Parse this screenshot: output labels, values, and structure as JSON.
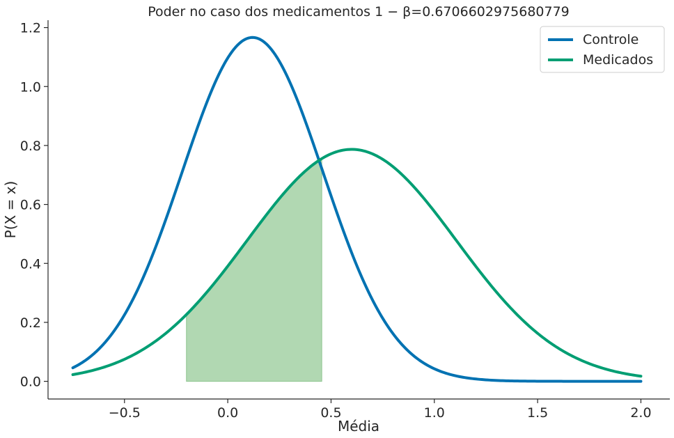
{
  "chart_data": {
    "type": "line",
    "title": "Poder no caso dos medicamentos 1 − β=0.6706602975680779",
    "xlabel": "Média",
    "ylabel": "P(X = x)",
    "xlim": [
      -0.87,
      2.14
    ],
    "ylim": [
      -0.06,
      1.225
    ],
    "x_ticks": [
      -0.5,
      0.0,
      0.5,
      1.0,
      1.5,
      2.0
    ],
    "x_tick_labels": [
      "−0.5",
      "0.0",
      "0.5",
      "1.0",
      "1.5",
      "2.0"
    ],
    "y_ticks": [
      0.0,
      0.2,
      0.4,
      0.6,
      0.8,
      1.0,
      1.2
    ],
    "y_tick_labels": [
      "0.0",
      "0.2",
      "0.4",
      "0.6",
      "0.8",
      "1.0",
      "1.2"
    ],
    "legend_position": "top-right",
    "grid": false,
    "series": [
      {
        "name": "Controle",
        "color": "#0072b2",
        "distribution": "normal",
        "mean": 0.12,
        "sd": 0.342,
        "x_range": [
          -0.75,
          2.0
        ],
        "points": [
          [
            -0.75,
            0.044
          ],
          [
            -0.5,
            0.22
          ],
          [
            -0.2,
            0.77
          ],
          [
            0.0,
            1.09
          ],
          [
            0.12,
            1.167
          ],
          [
            0.3,
            1.01
          ],
          [
            0.45,
            0.73
          ],
          [
            0.5,
            0.62
          ],
          [
            0.75,
            0.21
          ],
          [
            1.0,
            0.042
          ],
          [
            1.5,
            0.0003
          ],
          [
            2.0,
            0.0
          ]
        ]
      },
      {
        "name": "Medicados",
        "color": "#009e73",
        "distribution": "normal",
        "mean": 0.6,
        "sd": 0.507,
        "x_range": [
          -0.75,
          2.0
        ],
        "points": [
          [
            -0.75,
            0.023
          ],
          [
            -0.5,
            0.095
          ],
          [
            -0.2,
            0.23
          ],
          [
            0.0,
            0.39
          ],
          [
            0.2,
            0.57
          ],
          [
            0.45,
            0.754
          ],
          [
            0.6,
            0.787
          ],
          [
            1.0,
            0.57
          ],
          [
            1.5,
            0.162
          ],
          [
            2.0,
            0.017
          ]
        ]
      }
    ],
    "shaded_region": {
      "series": "Medicados",
      "x_from": -0.2,
      "x_to": 0.455,
      "color": "#b1d8b2",
      "edge_color": "#8cc48e"
    }
  }
}
